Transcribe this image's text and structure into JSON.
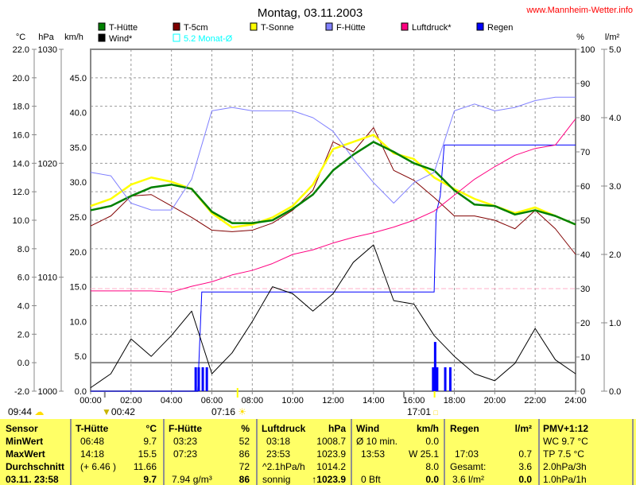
{
  "title": "Montag, 03.11.2003",
  "site": "www.Mannheim-Wetter.info",
  "legend": [
    {
      "label": "T-Hütte",
      "color": "#008000"
    },
    {
      "label": "T-5cm",
      "color": "#800000"
    },
    {
      "label": "T-Sonne",
      "color": "#ffff00"
    },
    {
      "label": "F-Hütte",
      "color": "#8080ff"
    },
    {
      "label": "Luftdruck*",
      "color": "#ff0080"
    },
    {
      "label": "Regen",
      "color": "#0000ff"
    },
    {
      "label": "Wind*",
      "color": "#000000"
    },
    {
      "label": "5.2 Monat-Ø",
      "color": "#00ffff"
    }
  ],
  "markers": {
    "m1": "09:44",
    "m2": "00:42",
    "m3": "07:16",
    "m4": "17:01"
  },
  "chart_data": {
    "type": "line",
    "title": "Montag, 03.11.2003",
    "x_ticks": [
      "00:00",
      "02:00",
      "04:00",
      "06:00",
      "08:00",
      "10:00",
      "12:00",
      "14:00",
      "16:00",
      "18:00",
      "20:00",
      "22:00",
      "24:00"
    ],
    "axes": {
      "celsius": {
        "unit": "°C",
        "range": [
          -2,
          22
        ],
        "ticks": [
          "22.0",
          "20.0",
          "18.0",
          "16.0",
          "14.0",
          "12.0",
          "10.0",
          "8.0",
          "6.0",
          "4.0",
          "2.0",
          "0.0",
          "-2.0"
        ]
      },
      "hpa": {
        "unit": "hPa",
        "range": [
          1000,
          1030
        ],
        "ticks": [
          "1030",
          "1020",
          "1010",
          "1000"
        ]
      },
      "kmh": {
        "unit": "km/h",
        "range": [
          0,
          49.1
        ],
        "ticks": [
          "45.0",
          "40.0",
          "35.0",
          "30.0",
          "25.0",
          "20.0",
          "15.0",
          "10.0",
          "5.0",
          "0.0"
        ]
      },
      "percent": {
        "unit": "%",
        "range": [
          0,
          100
        ],
        "ticks": [
          "100",
          "90",
          "80",
          "70",
          "60",
          "50",
          "40",
          "30",
          "20",
          "10",
          "0"
        ]
      },
      "rain": {
        "unit": "l/m²",
        "range": [
          0,
          5
        ],
        "ticks": [
          "5.0",
          "4.0",
          "3.0",
          "2.0",
          "1.0",
          "0.0"
        ]
      }
    },
    "grid": true,
    "monthly_mean_celsius": 5.2,
    "hours": [
      0,
      1,
      2,
      3,
      4,
      5,
      6,
      7,
      8,
      9,
      10,
      11,
      12,
      13,
      14,
      15,
      16,
      17,
      18,
      19,
      20,
      21,
      22,
      23,
      24
    ],
    "series": [
      {
        "name": "T-5cm",
        "axis": "celsius",
        "color": "#800000",
        "values": [
          9.6,
          10.3,
          11.7,
          11.8,
          11.0,
          10.2,
          9.3,
          9.2,
          9.3,
          9.8,
          10.7,
          12.1,
          15.5,
          14.8,
          16.5,
          13.5,
          12.8,
          11.6,
          10.3,
          10.3,
          10.0,
          9.4,
          10.7,
          9.4,
          7.6
        ]
      },
      {
        "name": "T-Sonne",
        "axis": "celsius",
        "color": "#ffff00",
        "values": [
          11.0,
          11.5,
          12.5,
          13.0,
          12.7,
          12.2,
          10.5,
          9.5,
          9.7,
          10.2,
          11.0,
          12.5,
          15.0,
          15.5,
          16.0,
          14.7,
          14.3,
          13.0,
          12.2,
          11.5,
          11.0,
          10.5,
          10.9,
          10.3,
          9.7
        ]
      },
      {
        "name": "T-Hütte",
        "axis": "celsius",
        "color": "#008000",
        "values": [
          10.7,
          11.0,
          11.7,
          12.3,
          12.5,
          12.2,
          10.6,
          9.8,
          9.8,
          10.0,
          10.8,
          11.8,
          13.5,
          14.6,
          15.5,
          14.8,
          14.0,
          13.5,
          12.1,
          11.1,
          11.0,
          10.4,
          10.7,
          10.3,
          9.7
        ]
      },
      {
        "name": "F-Hütte",
        "axis": "percent",
        "color": "#8080ff",
        "values": [
          64,
          63,
          55,
          53,
          53,
          62,
          82,
          83,
          82,
          82,
          82,
          80,
          76,
          68,
          61,
          55,
          61,
          64,
          82,
          84,
          82,
          83,
          85,
          86,
          86
        ]
      },
      {
        "name": "Luftdruck*",
        "axis": "hpa",
        "color": "#ff0080",
        "values": [
          1008.8,
          1008.8,
          1008.8,
          1008.8,
          1008.7,
          1009.2,
          1009.6,
          1010.2,
          1010.6,
          1011.2,
          1012.0,
          1012.4,
          1013.0,
          1013.5,
          1013.9,
          1014.4,
          1015.0,
          1015.8,
          1017.2,
          1018.6,
          1019.7,
          1020.7,
          1021.3,
          1021.6,
          1023.9
        ]
      },
      {
        "name": "Wind*",
        "axis": "kmh",
        "color": "#000000",
        "values": [
          0.5,
          2.5,
          7.5,
          5.0,
          8.0,
          11.5,
          2.5,
          5.5,
          10.0,
          15.0,
          14.0,
          11.5,
          14.0,
          18.5,
          21.0,
          13.0,
          12.5,
          8.0,
          5.0,
          2.5,
          1.5,
          4.0,
          9.0,
          4.5,
          2.5
        ]
      }
    ],
    "rain_cumulative": {
      "axis": "rain",
      "color": "#0000ff",
      "points": [
        [
          0,
          0
        ],
        [
          5.3,
          0
        ],
        [
          5.5,
          1.45
        ],
        [
          17.0,
          1.45
        ],
        [
          17.1,
          2.6
        ],
        [
          17.3,
          2.85
        ],
        [
          17.5,
          3.6
        ],
        [
          24,
          3.6
        ]
      ]
    },
    "rain_bars": {
      "axis": "rain",
      "color": "#0000ff",
      "points": [
        [
          5.2,
          0.35
        ],
        [
          5.35,
          0.35
        ],
        [
          5.55,
          0.35
        ],
        [
          5.75,
          0.35
        ],
        [
          16.95,
          0.35
        ],
        [
          17.05,
          0.72
        ],
        [
          17.15,
          0.35
        ],
        [
          17.55,
          0.35
        ],
        [
          17.8,
          0.35
        ]
      ]
    }
  },
  "table": {
    "sensor": {
      "h": "Sensor",
      "r1": "MinWert",
      "r2": "MaxWert",
      "r3": "Durchschnitt",
      "r4": "03.11. 23:58"
    },
    "thuette": {
      "h": "T-Hütte",
      "u": "°C",
      "r1a": "06:48",
      "r1b": "9.7",
      "r2a": "14:18",
      "r2b": "15.5",
      "r3a": "(+ 6.46 )",
      "r3b": "11.66",
      "r4b": "9.7"
    },
    "fhuette": {
      "h": "F-Hütte",
      "u": "%",
      "r1a": "03:23",
      "r1b": "52",
      "r2a": "07:23",
      "r2b": "86",
      "r3b": "72",
      "r4a": "7.94 g/m³",
      "r4b": "86"
    },
    "luftdruck": {
      "h": "Luftdruck",
      "u": "hPa",
      "r1a": "03:18",
      "r1b": "1008.7",
      "r2a": "23:53",
      "r2b": "1023.9",
      "r3a": "^2.1hPa/h",
      "r3b": "1014.2",
      "r4a": "sonnig",
      "r4b": "↑1023.9"
    },
    "wind": {
      "h": "Wind",
      "u": "km/h",
      "r1a": "Ø 10 min.",
      "r1b": "0.0",
      "r2a": "13:53",
      "r2b": "W 25.1",
      "r3b": "8.0",
      "r4a": "0 Bft",
      "r4b": "0.0"
    },
    "regen": {
      "h": "Regen",
      "u": "l/m²",
      "r2a": "17:03",
      "r2b": "0.7",
      "r3a": "Gesamt:",
      "r3b": "3.6",
      "r4a": "3.6 l/m²",
      "r4b": "0.0"
    },
    "pmv": {
      "h": "PMV+1:12",
      "r1": "WC 9.7 °C",
      "r2": "TP 7.5 °C",
      "r3": "2.0hPa/3h",
      "r4": "1.0hPa/1h"
    }
  }
}
